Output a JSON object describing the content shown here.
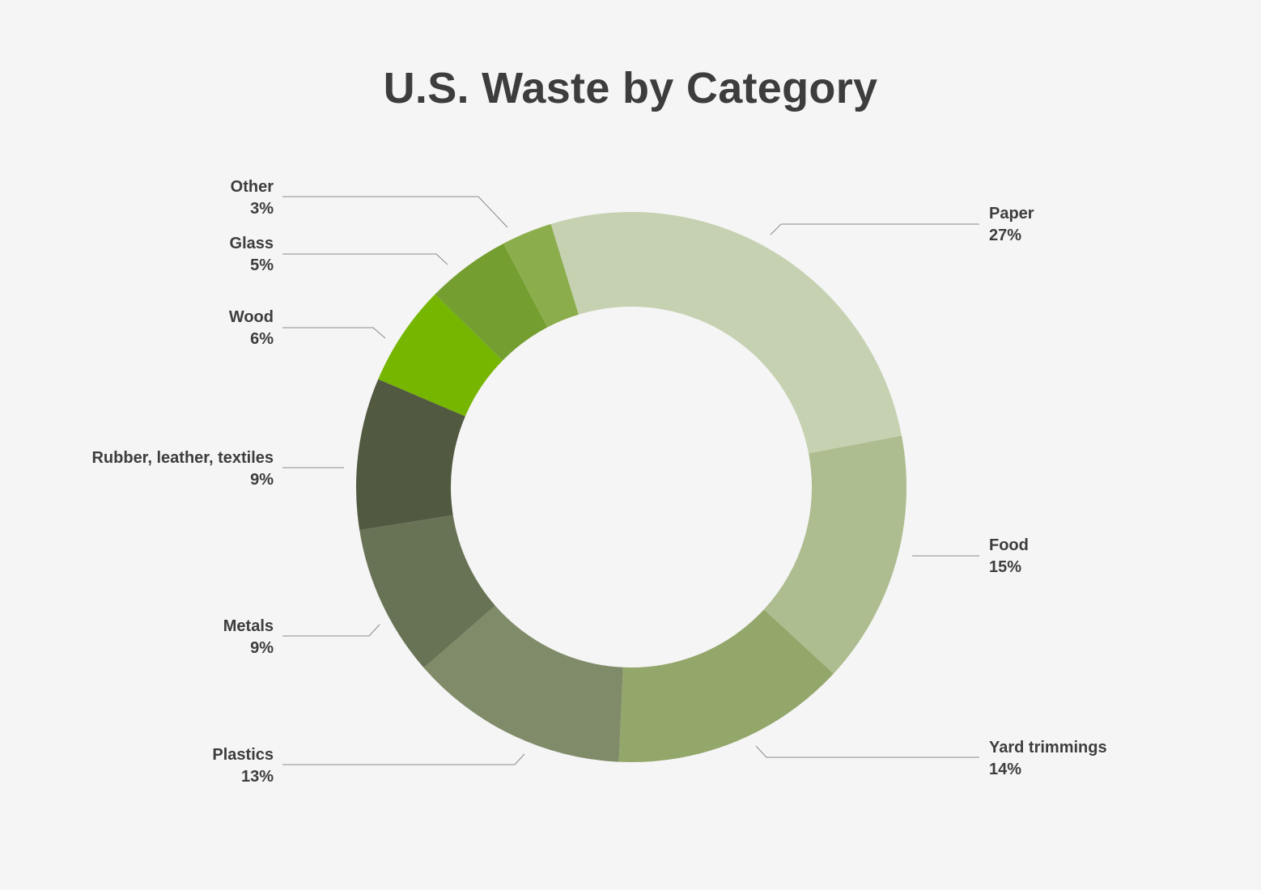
{
  "chart_data": {
    "type": "pie",
    "variant": "donut",
    "title": "U.S. Waste by Category",
    "categories": [
      "Paper",
      "Food",
      "Yard trimmings",
      "Plastics",
      "Metals",
      "Rubber, leather, textiles",
      "Wood",
      "Glass",
      "Other"
    ],
    "values": [
      27,
      15,
      14,
      13,
      9,
      9,
      6,
      5,
      3
    ],
    "value_labels": [
      "27%",
      "15%",
      "14%",
      "13%",
      "9%",
      "9%",
      "6%",
      "5%",
      "3%"
    ],
    "colors": [
      "#c5d1b1",
      "#adbd8f",
      "#94a76b",
      "#808c69",
      "#687355",
      "#525941",
      "#76b600",
      "#749f30",
      "#8cad4c"
    ],
    "legend": "none",
    "labels_placement": "outside with leader lines"
  }
}
